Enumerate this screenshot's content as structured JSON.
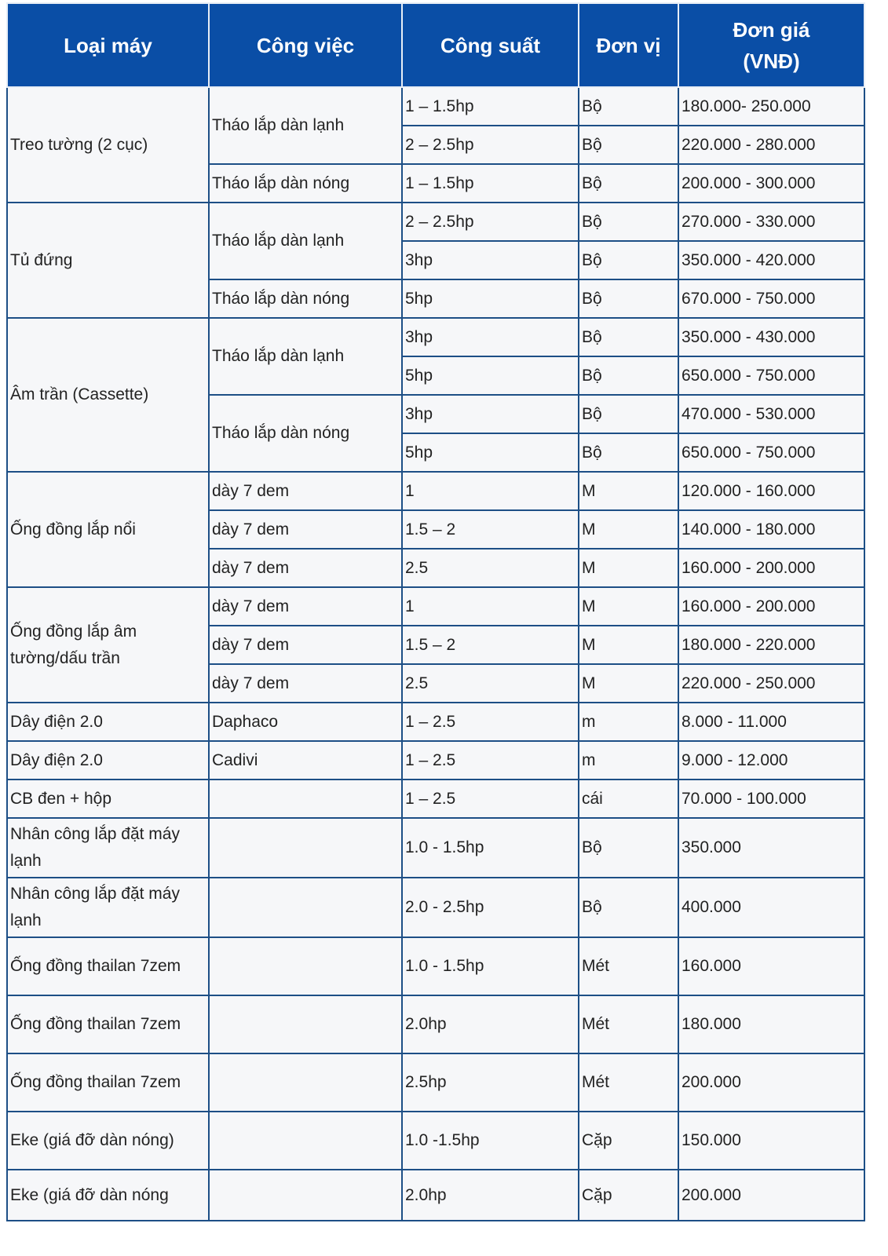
{
  "headers": [
    "Loại máy",
    "Công việc",
    "Công suất",
    "Đơn vị",
    "Đơn giá\n(VNĐ)"
  ],
  "groups": [
    {
      "machine": "Treo tường (2 cục)",
      "works": [
        {
          "name": "Tháo lắp dàn lạnh",
          "rows": [
            {
              "power": "1 – 1.5hp",
              "unit": "Bộ",
              "price": "180.000- 250.000"
            },
            {
              "power": "2 – 2.5hp",
              "unit": "Bộ",
              "price": "220.000 - 280.000"
            }
          ]
        },
        {
          "name": "Tháo lắp dàn nóng",
          "rows": [
            {
              "power": "1 – 1.5hp",
              "unit": "Bộ",
              "price": "200.000 - 300.000"
            }
          ]
        }
      ]
    },
    {
      "machine": "Tủ đứng",
      "works": [
        {
          "name": "Tháo lắp dàn lạnh",
          "rows": [
            {
              "power": "2 – 2.5hp",
              "unit": "Bộ",
              "price": "270.000 - 330.000"
            },
            {
              "power": "3hp",
              "unit": "Bộ",
              "price": "350.000 - 420.000"
            }
          ]
        },
        {
          "name": "Tháo lắp dàn nóng",
          "rows": [
            {
              "power": "5hp",
              "unit": "Bộ",
              "price": "670.000 - 750.000"
            }
          ]
        }
      ]
    },
    {
      "machine": "Âm trần (Cassette)",
      "works": [
        {
          "name": "Tháo lắp dàn lạnh",
          "rows": [
            {
              "power": "3hp",
              "unit": "Bộ",
              "price": "350.000 - 430.000"
            },
            {
              "power": "5hp",
              "unit": "Bộ",
              "price": "650.000 - 750.000"
            }
          ]
        },
        {
          "name": "Tháo lắp dàn nóng",
          "rows": [
            {
              "power": "3hp",
              "unit": "Bộ",
              "price": "470.000 - 530.000"
            },
            {
              "power": "5hp",
              "unit": "Bộ",
              "price": "650.000 - 750.000"
            }
          ]
        }
      ]
    },
    {
      "machine": "Ống đồng lắp nổi",
      "works": [
        {
          "name": "dày 7 dem",
          "rows": [
            {
              "power": "1",
              "unit": "M",
              "price": "120.000 - 160.000"
            }
          ]
        },
        {
          "name": "dày 7 dem",
          "rows": [
            {
              "power": "1.5 – 2",
              "unit": "M",
              "price": "140.000 - 180.000"
            }
          ]
        },
        {
          "name": "dày 7 dem",
          "rows": [
            {
              "power": "2.5",
              "unit": "M",
              "price": "160.000 - 200.000"
            }
          ]
        }
      ]
    },
    {
      "machine": "Ống đồng lắp âm tường/dấu trần",
      "works": [
        {
          "name": "dày 7 dem",
          "rows": [
            {
              "power": "1",
              "unit": "M",
              "price": "160.000 - 200.000"
            }
          ]
        },
        {
          "name": "dày 7 dem",
          "rows": [
            {
              "power": "1.5 – 2",
              "unit": "M",
              "price": "180.000 - 220.000"
            }
          ]
        },
        {
          "name": "dày 7 dem",
          "rows": [
            {
              "power": "2.5",
              "unit": "M",
              "price": "220.000 - 250.000"
            }
          ]
        }
      ]
    },
    {
      "machine": "Dây điện 2.0",
      "works": [
        {
          "name": "Daphaco",
          "rows": [
            {
              "power": "1 – 2.5",
              "unit": "m",
              "price": "8.000 - 11.000"
            }
          ]
        }
      ]
    },
    {
      "machine": "Dây điện 2.0",
      "works": [
        {
          "name": "Cadivi",
          "rows": [
            {
              "power": "1 – 2.5",
              "unit": "m",
              "price": "9.000 - 12.000"
            }
          ]
        }
      ]
    },
    {
      "machine": "CB đen + hộp",
      "works": [
        {
          "name": "",
          "rows": [
            {
              "power": "1 – 2.5",
              "unit": "cái",
              "price": "70.000 - 100.000"
            }
          ]
        }
      ]
    },
    {
      "machine": "Nhân công lắp đặt máy lạnh",
      "works": [
        {
          "name": "",
          "rows": [
            {
              "power": "1.0 - 1.5hp",
              "unit": "Bộ",
              "price": "350.000"
            }
          ]
        }
      ]
    },
    {
      "machine": "Nhân công lắp đặt máy lạnh",
      "works": [
        {
          "name": "",
          "rows": [
            {
              "power": "2.0 - 2.5hp",
              "unit": "Bộ",
              "price": "400.000"
            }
          ]
        }
      ]
    },
    {
      "machine": "Ống đồng thailan 7zem",
      "works": [
        {
          "name": "",
          "rows": [
            {
              "power": "1.0 - 1.5hp",
              "unit": "Mét",
              "price": "160.000"
            }
          ]
        }
      ]
    },
    {
      "machine": "Ống đồng thailan 7zem",
      "works": [
        {
          "name": "",
          "rows": [
            {
              "power": "2.0hp",
              "unit": "Mét",
              "price": "180.000"
            }
          ]
        }
      ]
    },
    {
      "machine": "Ống đồng thailan 7zem",
      "works": [
        {
          "name": "",
          "rows": [
            {
              "power": "2.5hp",
              "unit": "Mét",
              "price": "200.000"
            }
          ]
        }
      ]
    },
    {
      "machine": "Eke (giá đỡ dàn nóng)",
      "works": [
        {
          "name": "",
          "rows": [
            {
              "power": "1.0 -1.5hp",
              "unit": "Cặp",
              "price": "150.000"
            }
          ]
        }
      ]
    },
    {
      "machine": "Eke (giá đỡ dàn nóng",
      "works": [
        {
          "name": "",
          "rows": [
            {
              "power": "2.0hp",
              "unit": "Cặp",
              "price": "200.000"
            }
          ]
        }
      ]
    }
  ],
  "colors": {
    "header_bg": "#0a4ea6",
    "header_text": "#ffffff",
    "border": "#1d4f86",
    "cell_bg": "#f6f7f9"
  }
}
